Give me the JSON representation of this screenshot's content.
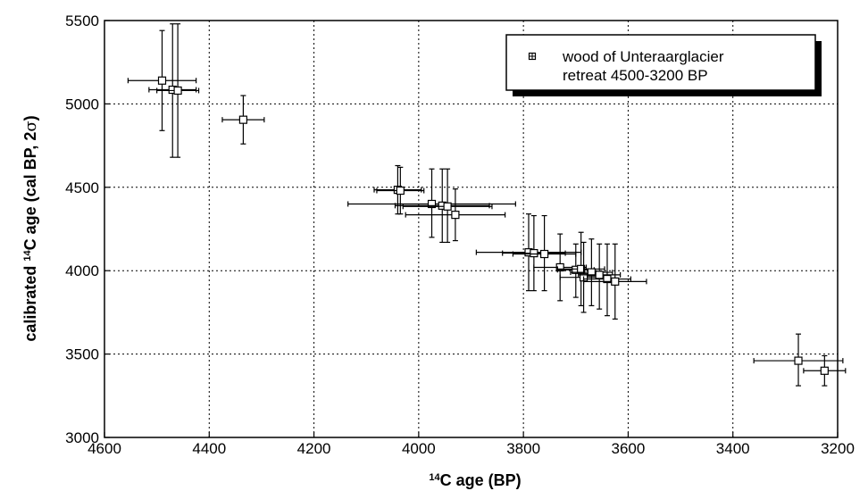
{
  "chart_data": {
    "type": "scatter",
    "title": "",
    "xlabel": {
      "pre": "",
      "sup": "14",
      "post": "C  age  (BP)"
    },
    "ylabel": {
      "pre": "calibrated  ",
      "sup": "14",
      "post": "C age (cal BP, 2",
      "sigma": "σ",
      "end": ")"
    },
    "xlim": [
      4600,
      3200
    ],
    "ylim": [
      3000,
      5500
    ],
    "x_reversed": true,
    "x_ticks": [
      4600,
      4400,
      4200,
      4000,
      3800,
      3600,
      3400,
      3200
    ],
    "y_ticks": [
      3000,
      3500,
      4000,
      4500,
      5000,
      5500
    ],
    "grid": true,
    "legend": {
      "placement": "top-right",
      "entries": [
        {
          "line1": "wood of  Unteraarglacier",
          "line2": "retreat 4500-3200 BP"
        }
      ]
    },
    "series": [
      {
        "marker": "square-with-cross",
        "points": [
          {
            "x": 4490,
            "y": 5140,
            "xerr": 65,
            "ylow": 4840,
            "yhigh": 5440
          },
          {
            "x": 4470,
            "y": 5085,
            "xerr": 45,
            "ylow": 4680,
            "yhigh": 5480
          },
          {
            "x": 4460,
            "y": 5080,
            "xerr": 40,
            "ylow": 4680,
            "yhigh": 5480
          },
          {
            "x": 4335,
            "y": 4905,
            "xerr": 40,
            "ylow": 4760,
            "yhigh": 5050
          },
          {
            "x": 4040,
            "y": 4485,
            "xerr": 45,
            "ylow": 4340,
            "yhigh": 4630
          },
          {
            "x": 4035,
            "y": 4480,
            "xerr": 45,
            "ylow": 4340,
            "yhigh": 4620
          },
          {
            "x": 3975,
            "y": 4400,
            "xerr": 160,
            "ylow": 4200,
            "yhigh": 4610
          },
          {
            "x": 3955,
            "y": 4390,
            "xerr": 90,
            "ylow": 4170,
            "yhigh": 4610
          },
          {
            "x": 3945,
            "y": 4385,
            "xerr": 85,
            "ylow": 4170,
            "yhigh": 4610
          },
          {
            "x": 3930,
            "y": 4335,
            "xerr": 95,
            "ylow": 4180,
            "yhigh": 4490
          },
          {
            "x": 3790,
            "y": 4110,
            "xerr": 100,
            "ylow": 3880,
            "yhigh": 4340
          },
          {
            "x": 3780,
            "y": 4105,
            "xerr": 60,
            "ylow": 3880,
            "yhigh": 4330
          },
          {
            "x": 3760,
            "y": 4100,
            "xerr": 60,
            "ylow": 3880,
            "yhigh": 4330
          },
          {
            "x": 3730,
            "y": 4020,
            "xerr": 50,
            "ylow": 3820,
            "yhigh": 4220
          },
          {
            "x": 3700,
            "y": 4005,
            "xerr": 35,
            "ylow": 3840,
            "yhigh": 4160
          },
          {
            "x": 3690,
            "y": 4010,
            "xerr": 45,
            "ylow": 3790,
            "yhigh": 4230
          },
          {
            "x": 3685,
            "y": 3960,
            "xerr": 45,
            "ylow": 3750,
            "yhigh": 4170
          },
          {
            "x": 3670,
            "y": 3990,
            "xerr": 40,
            "ylow": 3790,
            "yhigh": 4190
          },
          {
            "x": 3655,
            "y": 3975,
            "xerr": 40,
            "ylow": 3770,
            "yhigh": 4160
          },
          {
            "x": 3640,
            "y": 3950,
            "xerr": 45,
            "ylow": 3730,
            "yhigh": 4160
          },
          {
            "x": 3625,
            "y": 3935,
            "xerr": 60,
            "ylow": 3710,
            "yhigh": 4160
          },
          {
            "x": 3275,
            "y": 3460,
            "xerr": 85,
            "ylow": 3310,
            "yhigh": 3620
          },
          {
            "x": 3225,
            "y": 3400,
            "xerr": 40,
            "ylow": 3310,
            "yhigh": 3490
          }
        ]
      }
    ]
  }
}
